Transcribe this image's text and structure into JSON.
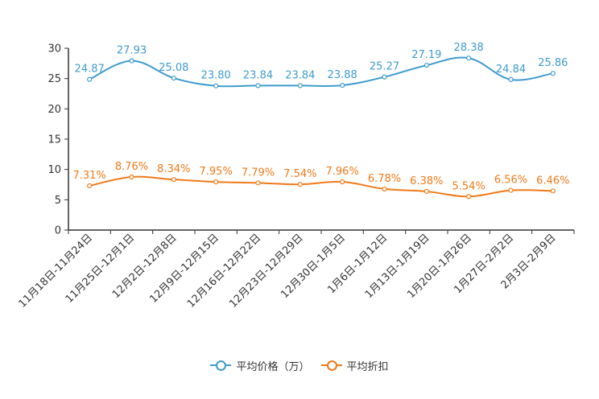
{
  "chart_data": {
    "type": "line",
    "title": "",
    "xlabel": "",
    "ylabel": "",
    "ylim": [
      0,
      30
    ],
    "yticks": [
      0,
      5,
      10,
      15,
      20,
      25,
      30
    ],
    "categories": [
      "11月18日-11月24日",
      "11月25日-12月1日",
      "12月2日-12月8日",
      "12月9日-12月15日",
      "12月16日-12月22日",
      "12月23日-12月29日",
      "12月30日-1月5日",
      "1月6日-1月12日",
      "1月13日-1月19日",
      "1月20日-1月26日",
      "1月27日-2月2日",
      "2月3日-2月9日"
    ],
    "series": [
      {
        "name": "平均价格（万）",
        "color": "#3d9bce",
        "values": [
          24.87,
          27.93,
          25.08,
          23.8,
          23.84,
          23.84,
          23.88,
          25.27,
          27.19,
          28.38,
          24.84,
          25.86
        ],
        "labels": [
          "24.87",
          "27.93",
          "25.08",
          "23.80",
          "23.84",
          "23.84",
          "23.88",
          "25.27",
          "27.19",
          "28.38",
          "24.84",
          "25.86"
        ]
      },
      {
        "name": "平均折扣",
        "color": "#f07a18",
        "values": [
          7.31,
          8.76,
          8.34,
          7.95,
          7.79,
          7.54,
          7.96,
          6.78,
          6.38,
          5.54,
          6.56,
          6.46
        ],
        "labels": [
          "7.31%",
          "8.76%",
          "8.34%",
          "7.95%",
          "7.79%",
          "7.54%",
          "7.96%",
          "6.78%",
          "6.38%",
          "5.54%",
          "6.56%",
          "6.46%"
        ]
      }
    ],
    "legend_position": "bottom-center",
    "grid": false
  }
}
